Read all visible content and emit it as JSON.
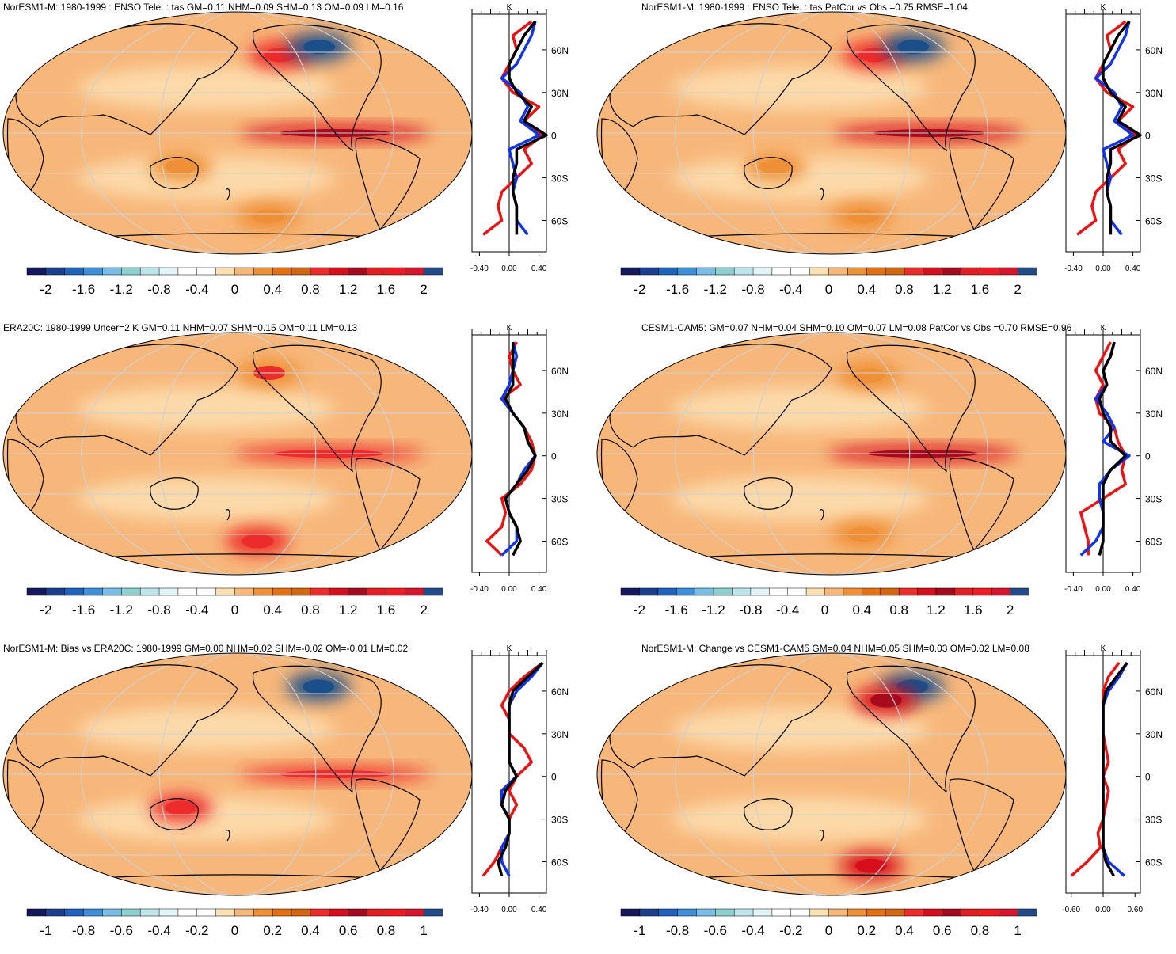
{
  "colors": {
    "ocean_base": "#f7b77a",
    "land_outline": "#000000",
    "grid": "#d0d0d0",
    "series_red": "#ee1111",
    "series_blue": "#1133ee",
    "series_black": "#000000"
  },
  "palette": [
    "#16185e",
    "#1a3f8c",
    "#1f63bd",
    "#3f8fd8",
    "#79bde6",
    "#8ecfcf",
    "#bde6ec",
    "#e3f4f6",
    "#ffffff",
    "#ffffff",
    "#fde0b2",
    "#f7b77a",
    "#ef8f36",
    "#e4700f",
    "#d4660f",
    "#ee2b2b",
    "#d80e1d",
    "#a50b1d",
    "#e41c24",
    "#f01a25",
    "#d8152a",
    "#224b8a"
  ],
  "lat_ticks": [
    "60N",
    "30N",
    "0",
    "30S",
    "60S"
  ],
  "unit": "K",
  "chart_data": [
    {
      "type": "heatmap",
      "title": "NorESM1-M: 1980-1999 : ENSO Tele. : tas GM=0.11 NHM=0.09 SHM=0.13 OM=0.09 LM=0.16",
      "colorbar_labels": [
        "-2",
        "-1.6",
        "-1.2",
        "-0.8",
        "-0.4",
        "0",
        "0.4",
        "0.8",
        "1.2",
        "1.6",
        "2"
      ],
      "profile_ticks": [
        "-0.40",
        "0.00",
        "0.40"
      ],
      "profile_xlim": [
        -0.5,
        0.5
      ],
      "profile": {
        "lat": [
          80,
          70,
          60,
          50,
          40,
          30,
          20,
          10,
          0,
          -10,
          -20,
          -30,
          -40,
          -50,
          -60,
          -70
        ],
        "red": [
          0.3,
          0.05,
          0.1,
          0.0,
          -0.1,
          0.05,
          0.4,
          0.2,
          0.45,
          0.2,
          0.3,
          0.1,
          -0.1,
          -0.15,
          -0.1,
          -0.35
        ],
        "blue": [
          0.35,
          0.3,
          0.2,
          0.1,
          -0.1,
          0.15,
          0.25,
          0.15,
          0.4,
          0.0,
          0.05,
          0.1,
          0.05,
          0.1,
          0.1,
          0.25
        ],
        "black": [
          0.35,
          0.2,
          0.1,
          0.0,
          0.0,
          0.1,
          0.3,
          0.2,
          0.5,
          0.1,
          0.1,
          0.05,
          0.05,
          0.1,
          0.1,
          0.1
        ]
      },
      "hotspots": [
        {
          "lon": -105,
          "lat": 0,
          "value": 1.6
        },
        {
          "lon": -140,
          "lat": 58,
          "value": 1.2
        },
        {
          "lon": -100,
          "lat": 64,
          "value": -1.6
        },
        {
          "lon": 135,
          "lat": -25,
          "value": 0.8
        },
        {
          "lon": -150,
          "lat": -62,
          "value": 0.9
        }
      ]
    },
    {
      "type": "heatmap",
      "title": "NorESM1-M: 1980-1999 : ENSO Tele. : tas PatCor vs Obs =0.75 RMSE=1.04",
      "colorbar_labels": [
        "-2",
        "-1.6",
        "-1.2",
        "-0.8",
        "-0.4",
        "0",
        "0.4",
        "0.8",
        "1.2",
        "1.6",
        "2"
      ],
      "profile_ticks": [
        "-0.40",
        "0.00",
        "0.40"
      ],
      "profile_xlim": [
        -0.5,
        0.5
      ],
      "profile": {
        "lat": [
          80,
          70,
          60,
          50,
          40,
          30,
          20,
          10,
          0,
          -10,
          -20,
          -30,
          -40,
          -50,
          -60,
          -70
        ],
        "red": [
          0.3,
          0.05,
          0.1,
          0.0,
          -0.1,
          0.05,
          0.4,
          0.2,
          0.45,
          0.2,
          0.3,
          0.1,
          -0.1,
          -0.15,
          -0.1,
          -0.35
        ],
        "blue": [
          0.35,
          0.3,
          0.2,
          0.1,
          -0.1,
          0.15,
          0.25,
          0.15,
          0.4,
          0.0,
          0.05,
          0.1,
          0.05,
          0.1,
          0.1,
          0.25
        ],
        "black": [
          0.35,
          0.2,
          0.1,
          0.0,
          0.0,
          0.1,
          0.3,
          0.2,
          0.5,
          0.1,
          0.1,
          0.05,
          0.05,
          0.1,
          0.1,
          0.1
        ]
      },
      "hotspots": [
        {
          "lon": -105,
          "lat": 0,
          "value": 1.6
        },
        {
          "lon": -140,
          "lat": 58,
          "value": 1.2
        },
        {
          "lon": -100,
          "lat": 64,
          "value": -1.6
        },
        {
          "lon": 135,
          "lat": -25,
          "value": 0.8
        },
        {
          "lon": -150,
          "lat": -62,
          "value": 0.9
        }
      ]
    },
    {
      "type": "heatmap",
      "title": "ERA20C: 1980-1999 Uncer=2 K GM=0.11 NHM=0.07 SHM=0.15 OM=0.11 LM=0.13",
      "colorbar_labels": [
        "-2",
        "-1.6",
        "-1.2",
        "-0.8",
        "-0.4",
        "0",
        "0.4",
        "0.8",
        "1.2",
        "1.6",
        "2"
      ],
      "profile_ticks": [
        "-0.40",
        "0.00",
        "0.40"
      ],
      "profile_xlim": [
        -0.5,
        0.5
      ],
      "profile": {
        "lat": [
          80,
          70,
          60,
          50,
          40,
          30,
          20,
          10,
          0,
          -10,
          -20,
          -30,
          -40,
          -50,
          -60,
          -70
        ],
        "red": [
          0.1,
          0.0,
          0.05,
          0.15,
          -0.1,
          0.05,
          0.2,
          0.3,
          0.35,
          0.3,
          0.15,
          -0.1,
          -0.05,
          -0.1,
          -0.3,
          -0.1
        ],
        "blue": [
          0.05,
          0.1,
          0.05,
          0.0,
          -0.1,
          0.05,
          0.2,
          0.25,
          0.35,
          0.2,
          0.1,
          -0.05,
          0.0,
          0.1,
          0.1,
          -0.1
        ],
        "black": [
          0.05,
          0.05,
          0.05,
          0.05,
          -0.05,
          0.05,
          0.2,
          0.25,
          0.35,
          0.25,
          0.1,
          -0.05,
          0.0,
          0.1,
          0.15,
          0.05
        ]
      },
      "hotspots": [
        {
          "lon": -110,
          "lat": 0,
          "value": 1.2
        },
        {
          "lon": -150,
          "lat": 60,
          "value": 1.0
        },
        {
          "lon": -160,
          "lat": -65,
          "value": 1.2
        }
      ]
    },
    {
      "type": "heatmap",
      "title": "CESM1-CAM5: GM=0.07 NHM=0.04 SHM=0.10 OM=0.07 LM=0.08 PatCor vs Obs =0.70 RMSE=0.96",
      "colorbar_labels": [
        "-2",
        "-1.6",
        "-1.2",
        "-0.8",
        "-0.4",
        "0",
        "0.4",
        "0.8",
        "1.2",
        "1.6",
        "2"
      ],
      "profile_ticks": [
        "-0.40",
        "0.00",
        "0.40"
      ],
      "profile_xlim": [
        -0.5,
        0.5
      ],
      "profile": {
        "lat": [
          80,
          70,
          60,
          50,
          40,
          30,
          20,
          10,
          0,
          -10,
          -20,
          -30,
          -40,
          -50,
          -60,
          -70
        ],
        "red": [
          0.1,
          0.0,
          -0.1,
          0.0,
          -0.1,
          -0.05,
          0.15,
          0.2,
          0.3,
          0.25,
          0.3,
          0.0,
          -0.3,
          -0.25,
          -0.2,
          -0.2
        ],
        "blue": [
          0.15,
          0.1,
          0.0,
          0.05,
          -0.1,
          0.05,
          0.15,
          0.0,
          0.35,
          0.1,
          -0.05,
          -0.05,
          0.0,
          0.0,
          -0.1,
          -0.3
        ],
        "black": [
          0.15,
          0.1,
          0.0,
          0.05,
          -0.05,
          0.0,
          0.1,
          0.1,
          0.3,
          0.1,
          0.0,
          0.0,
          0.0,
          0.0,
          0.0,
          -0.05
        ]
      },
      "hotspots": [
        {
          "lon": -110,
          "lat": 0,
          "value": 1.6
        },
        {
          "lon": -145,
          "lat": 58,
          "value": 0.8
        },
        {
          "lon": -150,
          "lat": -60,
          "value": 0.8
        }
      ]
    },
    {
      "type": "heatmap",
      "title": "NorESM1-M: Bias vs ERA20C: 1980-1999 GM=0.00 NHM=0.02 SHM=-0.02 OM=-0.01 LM=0.02",
      "colorbar_labels": [
        "-1",
        "-0.8",
        "-0.6",
        "-0.4",
        "-0.2",
        "0",
        "0.2",
        "0.4",
        "0.6",
        "0.8",
        "1"
      ],
      "profile_ticks": [
        "-0.40",
        "0.00",
        "0.40"
      ],
      "profile_xlim": [
        -0.5,
        0.5
      ],
      "profile": {
        "lat": [
          80,
          70,
          60,
          50,
          40,
          30,
          20,
          10,
          0,
          -10,
          -20,
          -30,
          -40,
          -50,
          -60,
          -70
        ],
        "red": [
          0.45,
          0.2,
          0.0,
          -0.1,
          0.0,
          0.0,
          0.2,
          0.3,
          0.1,
          0.0,
          0.1,
          0.0,
          0.0,
          -0.1,
          -0.2,
          -0.35
        ],
        "blue": [
          0.45,
          0.3,
          0.1,
          0.0,
          0.0,
          0.0,
          0.0,
          0.0,
          0.1,
          -0.1,
          -0.1,
          0.0,
          0.0,
          -0.1,
          -0.1,
          0.0
        ],
        "black": [
          0.45,
          0.25,
          0.05,
          0.0,
          0.0,
          0.0,
          0.0,
          0.0,
          0.1,
          -0.05,
          -0.1,
          0.0,
          0.0,
          -0.05,
          -0.15,
          -0.1
        ]
      },
      "hotspots": [
        {
          "lon": -100,
          "lat": 65,
          "value": -1.0
        },
        {
          "lon": -105,
          "lat": 0,
          "value": 0.6
        },
        {
          "lon": 135,
          "lat": -25,
          "value": 0.6
        }
      ]
    },
    {
      "type": "heatmap",
      "title": "NorESM1-M: Change vs CESM1-CAM5 GM=0.04 NHM=0.05 SHM=0.03 OM=0.02 LM=0.08",
      "colorbar_labels": [
        "-1",
        "-0.8",
        "-0.6",
        "-0.4",
        "-0.2",
        "0",
        "0.2",
        "0.4",
        "0.6",
        "0.8",
        "1"
      ],
      "profile_ticks": [
        "-0.60",
        "0.00",
        "0.60"
      ],
      "profile_xlim": [
        -0.7,
        0.7
      ],
      "profile": {
        "lat": [
          80,
          70,
          60,
          50,
          40,
          30,
          20,
          10,
          0,
          -10,
          -20,
          -30,
          -40,
          -50,
          -60,
          -70
        ],
        "red": [
          0.3,
          0.1,
          0.0,
          0.0,
          0.0,
          0.0,
          0.05,
          0.1,
          0.0,
          0.1,
          0.05,
          0.0,
          -0.1,
          -0.05,
          -0.3,
          -0.6
        ],
        "blue": [
          0.45,
          0.3,
          0.1,
          0.0,
          0.0,
          0.0,
          0.0,
          0.0,
          0.0,
          0.0,
          0.0,
          0.0,
          0.0,
          0.0,
          0.1,
          0.4
        ],
        "black": [
          0.45,
          0.25,
          0.05,
          0.0,
          0.0,
          0.0,
          0.0,
          0.0,
          0.0,
          0.0,
          0.0,
          0.0,
          0.0,
          0.0,
          0.05,
          0.2
        ]
      },
      "hotspots": [
        {
          "lon": -100,
          "lat": 65,
          "value": -1.0
        },
        {
          "lon": -130,
          "lat": 55,
          "value": 0.8
        },
        {
          "lon": -140,
          "lat": -68,
          "value": 0.7
        }
      ]
    }
  ]
}
